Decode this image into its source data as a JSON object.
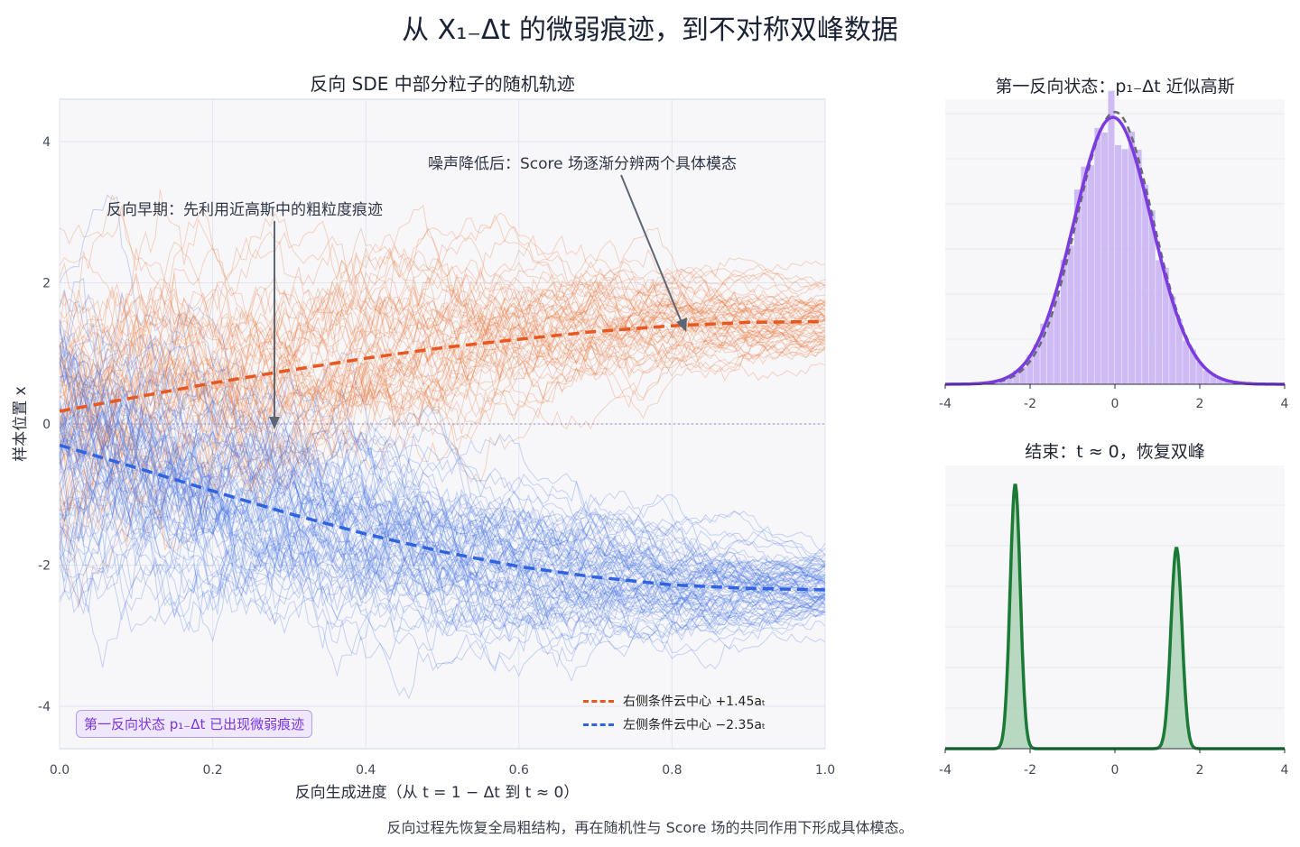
{
  "suptitle": "从 X₁₋Δt 的微弱痕迹，到不对称双峰数据",
  "caption": "反向过程先恢复全局粗结构，再在随机性与 Score 场的共同作用下形成具体模态。",
  "colors": {
    "orange": "#e8571f",
    "blue": "#2f63e0",
    "purple": "#7b3be0",
    "green": "#1a7a36",
    "gray": "#666a73"
  },
  "main": {
    "title": "反向 SDE 中部分粒子的随机轨迹",
    "xlabel": "反向生成进度（从 t = 1 − Δt 到 t ≈ 0）",
    "ylabel": "样本位置 x",
    "annotation_early": "反向早期：先利用近高斯中的粗粒度痕迹",
    "annotation_late": "噪声降低后：Score 场逐渐分辨两个具体模态",
    "infobox": "第一反向状态 p₁₋Δt 已出现微弱痕迹",
    "legend": [
      "右侧条件云中心 +1.45aₜ",
      "左侧条件云中心 −2.35aₜ"
    ]
  },
  "top_right": {
    "title": "第一反向状态：p₁₋Δt 近似高斯"
  },
  "bottom_right": {
    "title": "结束：t ≈ 0，恢复双峰"
  },
  "chart_data": [
    {
      "type": "line",
      "title": "反向 SDE 中部分粒子的随机轨迹",
      "xlabel": "反向生成进度（从 t = 1 − Δt 到 t ≈ 0）",
      "ylabel": "样本位置 x",
      "xlim": [
        0,
        1
      ],
      "ylim": [
        -4.6,
        4.6
      ],
      "xticks": [
        "0.0",
        "0.2",
        "0.4",
        "0.6",
        "0.8",
        "1.0"
      ],
      "yticks": [
        "-4",
        "-2",
        "0",
        "2",
        "4"
      ],
      "grid": true,
      "legend": "bottom-right",
      "series": [
        {
          "name": "右侧条件云中心 +1.45aₜ",
          "style": "dashed",
          "color": "#e8571f",
          "x": [
            0,
            0.1,
            0.2,
            0.3,
            0.4,
            0.5,
            0.6,
            0.7,
            0.8,
            0.9,
            1.0
          ],
          "y": [
            0.18,
            0.38,
            0.58,
            0.76,
            0.93,
            1.08,
            1.2,
            1.31,
            1.39,
            1.44,
            1.45
          ]
        },
        {
          "name": "左侧条件云中心 −2.35aₜ",
          "style": "dashed",
          "color": "#2f63e0",
          "x": [
            0,
            0.1,
            0.2,
            0.3,
            0.4,
            0.5,
            0.6,
            0.7,
            0.8,
            0.9,
            1.0
          ],
          "y": [
            -0.3,
            -0.62,
            -0.95,
            -1.27,
            -1.56,
            -1.81,
            -2.02,
            -2.17,
            -2.28,
            -2.33,
            -2.35
          ]
        }
      ],
      "trajectories": {
        "orange_count": 60,
        "blue_count": 80,
        "orange_end": 1.45,
        "blue_end": -2.35
      },
      "reference_line_y": 0
    },
    {
      "type": "bar",
      "title": "第一反向状态：p₁₋Δt 近似高斯",
      "xlim": [
        -4,
        4
      ],
      "xticks": [
        "-4",
        "-2",
        "0",
        "2",
        "4"
      ],
      "histogram_color": "#c8b0f2",
      "gaussian_fit": {
        "mean": -0.05,
        "std": 0.92,
        "color": "#7b3be0"
      },
      "reference_normal": {
        "mean": 0,
        "std": 0.9,
        "style": "dashed",
        "color": "#666a73"
      }
    },
    {
      "type": "area",
      "title": "结束：t ≈ 0，恢复双峰",
      "xlim": [
        -4,
        4
      ],
      "xticks": [
        "-4",
        "-2",
        "0",
        "2",
        "4"
      ],
      "peaks": [
        {
          "center": -2.35,
          "height": 1.0,
          "std": 0.12
        },
        {
          "center": 1.45,
          "height": 0.76,
          "std": 0.13
        }
      ],
      "color": "#1a7a36"
    }
  ]
}
